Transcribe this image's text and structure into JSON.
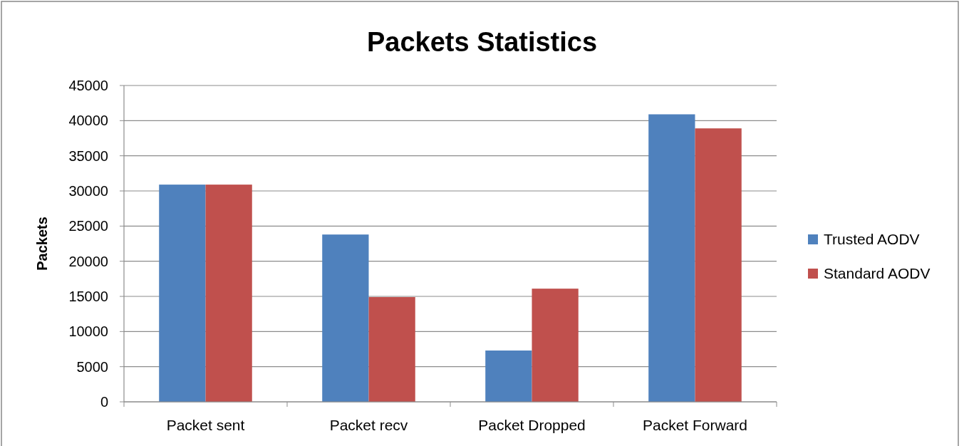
{
  "chart_data": {
    "type": "bar",
    "title": "Packets Statistics",
    "ylabel": "Packets",
    "categories": [
      "Packet sent",
      "Packet recv",
      "Packet Dropped",
      "Packet Forward"
    ],
    "series": [
      {
        "name": "Trusted AODV",
        "color": "#4f81bd",
        "values": [
          30900,
          23800,
          7300,
          40900
        ]
      },
      {
        "name": "Standard AODV",
        "color": "#c0504d",
        "values": [
          30900,
          14900,
          16100,
          38900
        ]
      }
    ],
    "ylim": [
      0,
      45000
    ],
    "yticks": [
      0,
      5000,
      10000,
      15000,
      20000,
      25000,
      30000,
      35000,
      40000,
      45000
    ],
    "grid": "y",
    "legend": "right"
  }
}
